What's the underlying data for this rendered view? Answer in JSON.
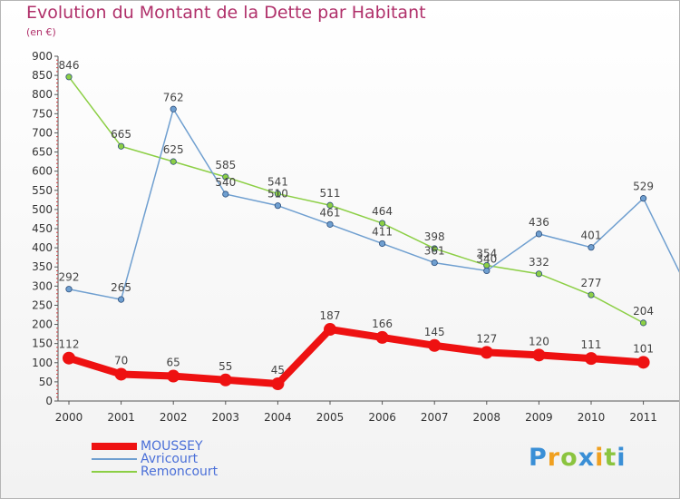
{
  "title": "Evolution du Montant de la Dette par Habitant",
  "unit": "(en €)",
  "chart_data": {
    "type": "line",
    "title": "Evolution du Montant de la Dette par Habitant",
    "ylabel": "(en €)",
    "xlabel": "",
    "x": [
      "2000",
      "2001",
      "2002",
      "2003",
      "2004",
      "2005",
      "2006",
      "2007",
      "2008",
      "2009",
      "2010",
      "2011"
    ],
    "ylim": [
      0,
      900
    ],
    "yticks": [
      "0",
      "50",
      "100",
      "150",
      "200",
      "250",
      "300",
      "350",
      "400",
      "450",
      "500",
      "550",
      "600",
      "650",
      "700",
      "750",
      "800",
      "850",
      "900"
    ],
    "grid": false,
    "series": [
      {
        "name": "MOUSSEY",
        "color": "#ee1111",
        "values": [
          112,
          70,
          65,
          55,
          45,
          187,
          166,
          145,
          127,
          120,
          111,
          101
        ]
      },
      {
        "name": "Avricourt",
        "color": "#6f9fd0",
        "values": [
          292,
          265,
          762,
          540,
          510,
          461,
          411,
          361,
          340,
          436,
          401,
          529
        ]
      },
      {
        "name": "Remoncourt",
        "color": "#8ccf45",
        "values": [
          846,
          665,
          625,
          585,
          541,
          511,
          464,
          398,
          354,
          332,
          277,
          204
        ]
      }
    ]
  },
  "legend": [
    {
      "label": "MOUSSEY",
      "color": "#ee1111"
    },
    {
      "label": "Avricourt",
      "color": "#6f9fd0"
    },
    {
      "label": "Remoncourt",
      "color": "#8ccf45"
    }
  ],
  "logo": {
    "letters": [
      "P",
      "r",
      "o",
      "x",
      "i",
      "t",
      "i"
    ],
    "colors": [
      "#3a8fd6",
      "#f0a020",
      "#8bc43f",
      "#3a8fd6",
      "#f0a020",
      "#8bc43f",
      "#3a8fd6"
    ]
  }
}
